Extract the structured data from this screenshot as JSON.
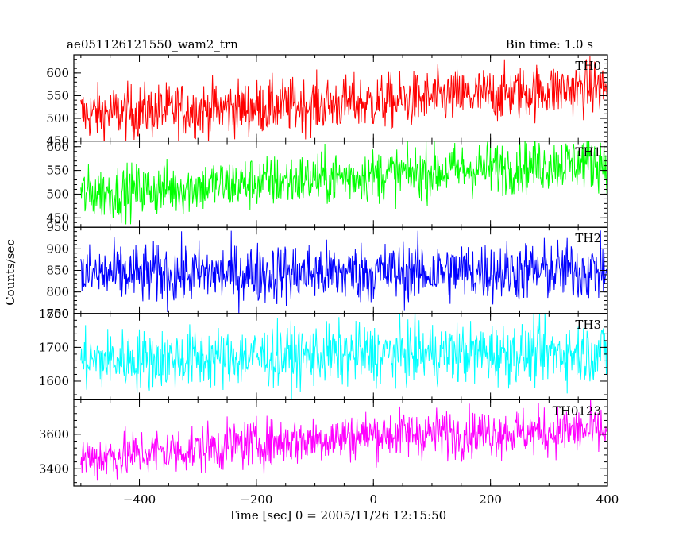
{
  "title_left": "ae051126121550_wam2_trn",
  "title_right": "Bin time: 1.0 s",
  "xlabel": "Time [sec] 0 = 2005/11/26 12:15:50",
  "ylabel": "Counts/sec",
  "chart_data": {
    "type": "line",
    "x_range": [
      -512,
      400
    ],
    "x_ticks": [
      -400,
      -200,
      0,
      200,
      400
    ],
    "bin_time_s": 1.0,
    "series": [
      {
        "name": "TH0",
        "color": "#ff0000",
        "ylim": [
          450,
          640
        ],
        "yticks": [
          450,
          500,
          550,
          600
        ],
        "trend": [
          [
            -500,
            510
          ],
          [
            0,
            535
          ],
          [
            400,
            570
          ]
        ],
        "noise": 30
      },
      {
        "name": "TH1",
        "color": "#00ff00",
        "ylim": [
          430,
          612
        ],
        "yticks": [
          450,
          500,
          550,
          600
        ],
        "trend": [
          [
            -500,
            500
          ],
          [
            0,
            540
          ],
          [
            400,
            570
          ]
        ],
        "noise": 28
      },
      {
        "name": "TH2",
        "color": "#0000ff",
        "ylim": [
          750,
          950
        ],
        "yticks": [
          750,
          800,
          850,
          900,
          950
        ],
        "trend": [
          [
            -500,
            840
          ],
          [
            0,
            845
          ],
          [
            400,
            850
          ]
        ],
        "noise": 35
      },
      {
        "name": "TH3",
        "color": "#00ffff",
        "ylim": [
          1545,
          1800
        ],
        "yticks": [
          1600,
          1700,
          1800
        ],
        "trend": [
          [
            -500,
            1660
          ],
          [
            0,
            1680
          ],
          [
            400,
            1685
          ]
        ],
        "noise": 45
      },
      {
        "name": "TH0123",
        "color": "#ff00ff",
        "ylim": [
          3300,
          3800
        ],
        "yticks": [
          3400,
          3600
        ],
        "trend": [
          [
            -500,
            3460
          ],
          [
            0,
            3600
          ],
          [
            400,
            3620
          ]
        ],
        "noise": 70
      }
    ]
  }
}
